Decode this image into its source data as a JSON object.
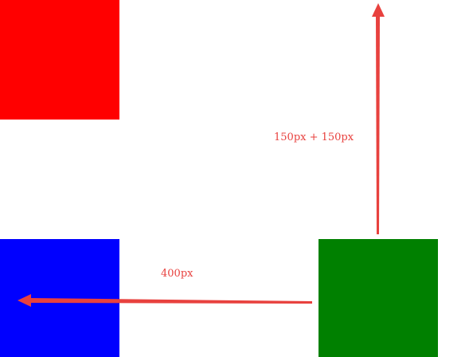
{
  "colors": {
    "red": "#ff0000",
    "blue": "#0000ff",
    "green": "#008000",
    "annotation": "#e8413e"
  },
  "annotations": {
    "vertical_move": "150px + 150px",
    "horizontal_move": "400px"
  }
}
